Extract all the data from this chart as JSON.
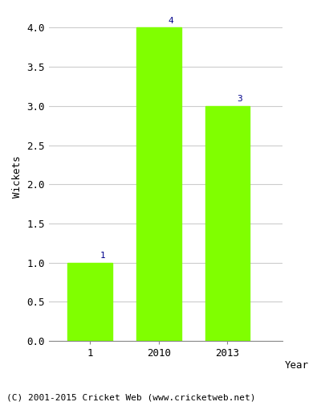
{
  "categories": [
    "1",
    "2010",
    "2013"
  ],
  "values": [
    1,
    4,
    3
  ],
  "bar_color": "#80ff00",
  "bar_positions": [
    1,
    2,
    3
  ],
  "ylabel": "Wickets",
  "xlabel": "Year",
  "ylim": [
    0,
    4.2
  ],
  "yticks": [
    0.0,
    0.5,
    1.0,
    1.5,
    2.0,
    2.5,
    3.0,
    3.5,
    4.0
  ],
  "annotation_color": "#00008B",
  "annotation_fontsize": 8,
  "axis_label_fontsize": 9,
  "tick_fontsize": 9,
  "footer_text": "(C) 2001-2015 Cricket Web (www.cricketweb.net)",
  "footer_fontsize": 8,
  "background_color": "#ffffff",
  "grid_color": "#cccccc",
  "bar_width": 0.65,
  "xlim": [
    0.4,
    3.8
  ]
}
